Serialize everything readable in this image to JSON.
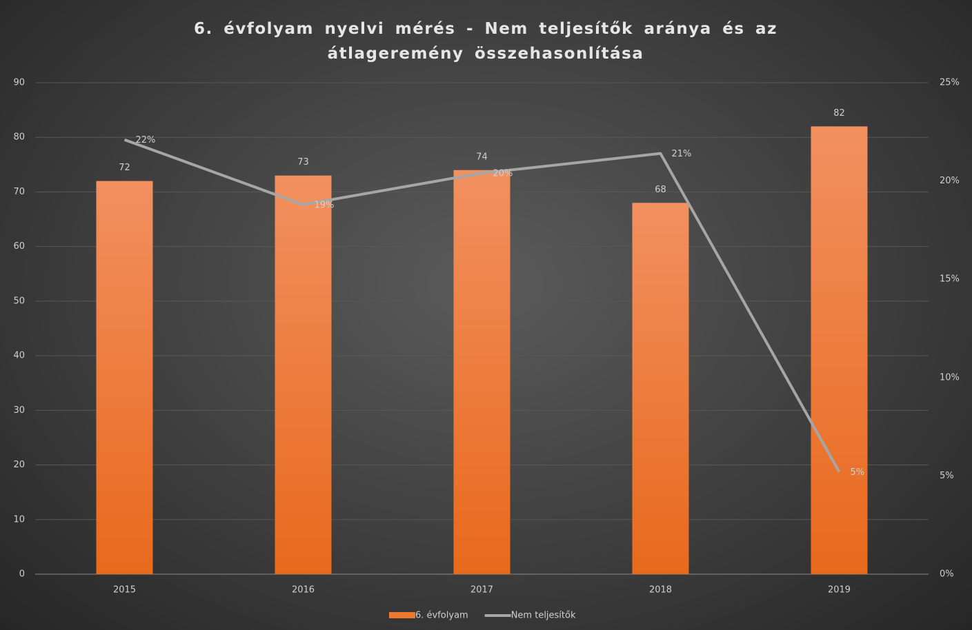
{
  "chart_data": {
    "type": "bar_line",
    "title": "6. évfolyam nyelvi mérés - Nem teljesítők aránya és az átlageremény összehasonlítása",
    "categories": [
      "2015",
      "2016",
      "2017",
      "2018",
      "2019"
    ],
    "series": [
      {
        "name": "6. évfolyam",
        "type": "bar",
        "color": "#ee7a30",
        "values": [
          72,
          73,
          74,
          68,
          82
        ]
      },
      {
        "name": "Nem teljesítők",
        "type": "line",
        "axis": "y2",
        "color": "#a6a6a6",
        "values": [
          22.1,
          18.8,
          20.4,
          21.4,
          5.2
        ],
        "value_labels": [
          "22%",
          "19%",
          "20%",
          "21%",
          "5%"
        ]
      }
    ],
    "ylim": [
      0,
      90
    ],
    "yticks": [
      0,
      10,
      20,
      30,
      40,
      50,
      60,
      70,
      80,
      90
    ],
    "y2lim": [
      0,
      25
    ],
    "y2ticks": [
      {
        "value": 0,
        "label": "0%"
      },
      {
        "value": 5,
        "label": "5%"
      },
      {
        "value": 10,
        "label": "10%"
      },
      {
        "value": 15,
        "label": "15%"
      },
      {
        "value": 20,
        "label": "20%"
      },
      {
        "value": 25,
        "label": "25%"
      }
    ],
    "grid": true,
    "legend": "bottom"
  }
}
